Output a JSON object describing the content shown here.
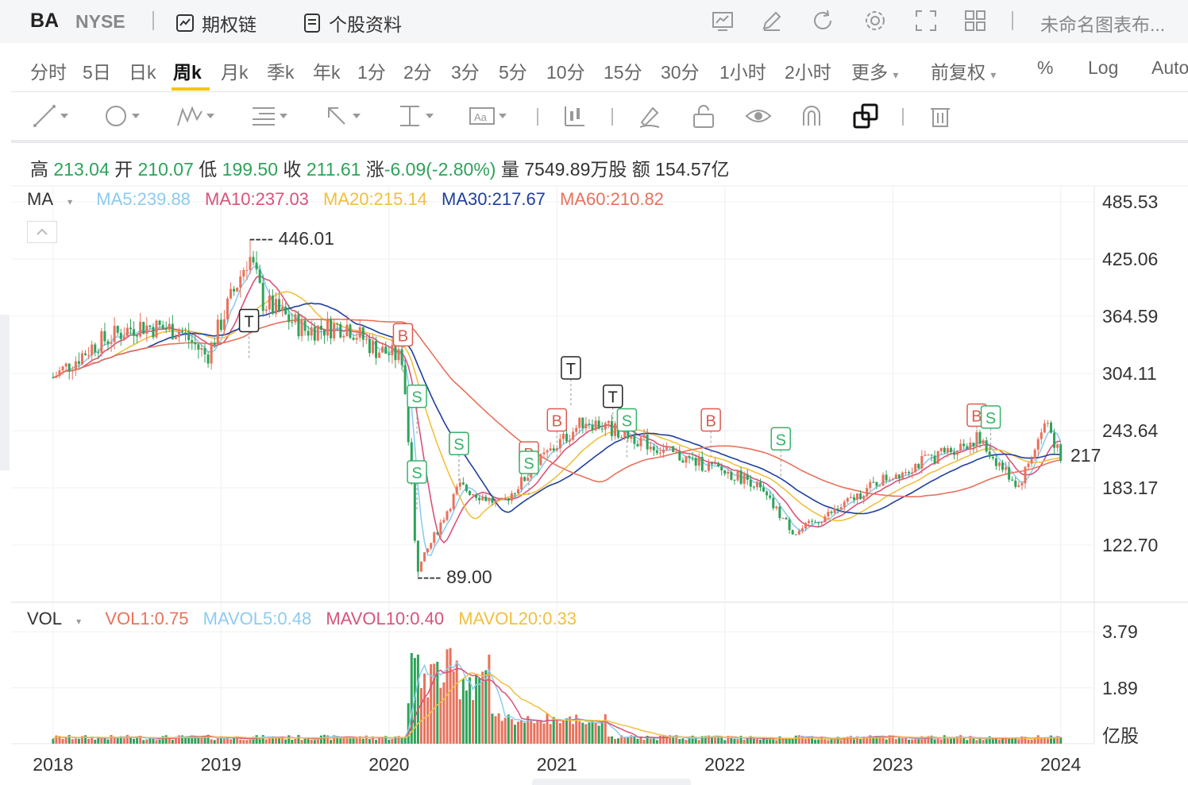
{
  "header": {
    "ticker": "BA",
    "exchange": "NYSE",
    "option_chain_label": "期权链",
    "profile_label": "个股资料",
    "layout_name": "未命名图表布..."
  },
  "periods": [
    {
      "label": "分时"
    },
    {
      "label": "5日"
    },
    {
      "label": "日k"
    },
    {
      "label": "周k",
      "active": true
    },
    {
      "label": "月k"
    },
    {
      "label": "季k"
    },
    {
      "label": "年k"
    },
    {
      "label": "1分"
    },
    {
      "label": "2分"
    },
    {
      "label": "3分"
    },
    {
      "label": "5分"
    },
    {
      "label": "10分"
    },
    {
      "label": "15分"
    },
    {
      "label": "30分"
    },
    {
      "label": "1小时"
    },
    {
      "label": "2小时"
    },
    {
      "label": "更多"
    },
    {
      "label": "前复权"
    },
    {
      "label": "%"
    },
    {
      "label": "Log"
    },
    {
      "label": "Auto"
    }
  ],
  "quote": {
    "high_label": "高",
    "high": "213.04",
    "open_label": "开",
    "open": "210.07",
    "low_label": "低",
    "low": "199.50",
    "close_label": "收",
    "close": "211.61",
    "change_label": "涨",
    "change": "-6.09(-2.80%)",
    "volume_label": "量",
    "volume": "7549.89万股",
    "amount_label": "额",
    "amount": "154.57亿"
  },
  "ma_legend": {
    "name": "MA",
    "items": [
      {
        "text": "MA5:239.88",
        "color": "#8ecbf0"
      },
      {
        "text": "MA10:237.03",
        "color": "#d9527a"
      },
      {
        "text": "MA20:215.14",
        "color": "#f0c040"
      },
      {
        "text": "MA30:217.67",
        "color": "#1f3f9e"
      },
      {
        "text": "MA60:210.82",
        "color": "#e8725c"
      }
    ]
  },
  "vol_legend": {
    "name": "VOL",
    "items": [
      {
        "text": "VOL1:0.75",
        "color": "#e8725c"
      },
      {
        "text": "MAVOL5:0.48",
        "color": "#8ecbf0"
      },
      {
        "text": "MAVOL10:0.40",
        "color": "#d9527a"
      },
      {
        "text": "MAVOL20:0.33",
        "color": "#f0c040"
      }
    ]
  },
  "price_axis": [
    "485.53",
    "425.06",
    "364.59",
    "304.11",
    "243.64",
    "183.17",
    "122.70"
  ],
  "vol_axis": [
    "3.79",
    "1.89",
    "亿股"
  ],
  "x_axis": [
    "2018",
    "2019",
    "2020",
    "2021",
    "2022",
    "2023",
    "2024"
  ],
  "annotations": {
    "high": "---- 446.01",
    "low": "---- 89.00",
    "last_price_partial": "217"
  },
  "chart_data": {
    "type": "candlestick",
    "title": "",
    "x_ticks": [
      "2018",
      "2019",
      "2020",
      "2021",
      "2022",
      "2023",
      "2024"
    ],
    "y_range": [
      100,
      505
    ],
    "colors": {
      "up": "#e8725c",
      "down": "#2ea35a"
    },
    "closes": [
      {
        "date": "2018-01",
        "value": 300
      },
      {
        "date": "2018-04",
        "value": 335
      },
      {
        "date": "2018-07",
        "value": 355
      },
      {
        "date": "2018-10",
        "value": 350
      },
      {
        "date": "2018-12",
        "value": 322
      },
      {
        "date": "2019-03",
        "value": 430
      },
      {
        "date": "2019-04",
        "value": 380
      },
      {
        "date": "2019-07",
        "value": 350
      },
      {
        "date": "2019-10",
        "value": 355
      },
      {
        "date": "2019-12",
        "value": 330
      },
      {
        "date": "2020-02",
        "value": 320
      },
      {
        "date": "2020-03",
        "value": 95
      },
      {
        "date": "2020-06",
        "value": 185
      },
      {
        "date": "2020-09",
        "value": 165
      },
      {
        "date": "2020-12",
        "value": 215
      },
      {
        "date": "2021-03",
        "value": 255
      },
      {
        "date": "2021-06",
        "value": 240
      },
      {
        "date": "2021-09",
        "value": 220
      },
      {
        "date": "2021-12",
        "value": 205
      },
      {
        "date": "2022-03",
        "value": 190
      },
      {
        "date": "2022-06",
        "value": 135
      },
      {
        "date": "2022-09",
        "value": 160
      },
      {
        "date": "2022-12",
        "value": 190
      },
      {
        "date": "2023-03",
        "value": 210
      },
      {
        "date": "2023-07",
        "value": 235
      },
      {
        "date": "2023-10",
        "value": 185
      },
      {
        "date": "2023-12",
        "value": 255
      },
      {
        "date": "2024-01",
        "value": 211.61
      }
    ],
    "markers": [
      {
        "label": "T",
        "date": "2019-03",
        "value": 360
      },
      {
        "label": "B",
        "date": "2020-02",
        "value": 345
      },
      {
        "label": "S",
        "date": "2020-03",
        "value": 280
      },
      {
        "label": "S",
        "date": "2020-03",
        "value": 200
      },
      {
        "label": "B",
        "date": "2020-06",
        "value": 230
      },
      {
        "label": "S",
        "date": "2020-06",
        "value": 230
      },
      {
        "label": "B",
        "date": "2020-11",
        "value": 220
      },
      {
        "label": "S",
        "date": "2020-11",
        "value": 210
      },
      {
        "label": "B",
        "date": "2021-01",
        "value": 255
      },
      {
        "label": "T",
        "date": "2021-02",
        "value": 310
      },
      {
        "label": "T",
        "date": "2021-05",
        "value": 280
      },
      {
        "label": "S",
        "date": "2021-06",
        "value": 255
      },
      {
        "label": "B",
        "date": "2021-12",
        "value": 255
      },
      {
        "label": "S",
        "date": "2022-05",
        "value": 235
      },
      {
        "label": "B",
        "date": "2023-07",
        "value": 260
      },
      {
        "label": "S",
        "date": "2023-08",
        "value": 258
      }
    ],
    "high_point": {
      "date": "2019-03",
      "value": 446.01
    },
    "low_point": {
      "date": "2020-03",
      "value": 89.0
    },
    "ma_lines": [
      "MA5",
      "MA10",
      "MA20",
      "MA30",
      "MA60"
    ],
    "volume_range": [
      0,
      4.2
    ],
    "volume_unit": "亿股"
  }
}
